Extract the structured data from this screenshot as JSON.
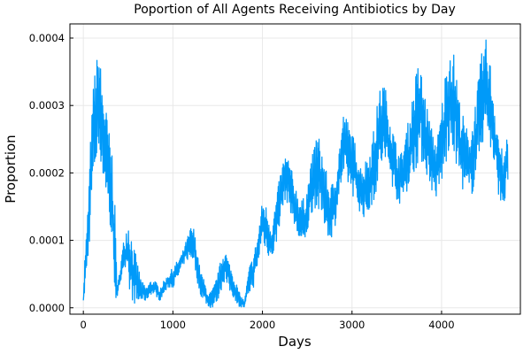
{
  "chart_data": {
    "type": "line",
    "title": "Poportion of All Agents Receiving Antibiotics by Day",
    "xlabel": "Days",
    "ylabel": "Proportion",
    "xlim": [
      -150,
      4880
    ],
    "ylim": [
      -9.5e-06,
      0.000421
    ],
    "x_ticks": [
      0,
      1000,
      2000,
      3000,
      4000
    ],
    "x_tick_labels": [
      "0",
      "1000",
      "2000",
      "3000",
      "4000"
    ],
    "y_ticks": [
      0,
      0.0001,
      0.0002,
      0.0003,
      0.0004
    ],
    "y_tick_labels": [
      "0.0000",
      "0.0001",
      "0.0002",
      "0.0003",
      "0.0004"
    ],
    "grid": true,
    "legend": "none",
    "series_color": "#009af9",
    "series": [
      {
        "envelope_x": [
          0,
          20,
          40,
          60,
          80,
          100,
          120,
          150,
          180,
          200,
          230,
          260,
          290,
          320,
          350,
          370,
          380,
          400,
          450,
          500,
          550,
          600,
          650,
          700,
          750,
          800,
          850,
          900,
          950,
          1000,
          1050,
          1100,
          1150,
          1200,
          1230,
          1270,
          1300,
          1350,
          1400,
          1450,
          1500,
          1550,
          1580,
          1600,
          1650,
          1700,
          1750,
          1800,
          1850,
          1900,
          1950,
          1980,
          2000,
          2050,
          2100,
          2150,
          2200,
          2250,
          2300,
          2350,
          2400,
          2450,
          2500,
          2550,
          2600,
          2650,
          2700,
          2750,
          2800,
          2850,
          2900,
          2950,
          3000,
          3050,
          3100,
          3150,
          3200,
          3250,
          3300,
          3350,
          3400,
          3450,
          3500,
          3550,
          3600,
          3650,
          3700,
          3750,
          3800,
          3850,
          3900,
          3950,
          4000,
          4050,
          4100,
          4150,
          4200,
          4250,
          4300,
          4350,
          4400,
          4450,
          4500,
          4550,
          4600,
          4650,
          4700,
          4740
        ],
        "envelope_low": [
          0.0,
          3e-05,
          5e-05,
          8e-05,
          0.00012,
          0.00016,
          0.00019,
          0.00021,
          0.00023,
          0.00021,
          0.00018,
          0.00016,
          0.00012,
          8e-05,
          3e-05,
          0.0,
          1e-05,
          3e-05,
          6e-05,
          2e-05,
          1e-05,
          0.0,
          1e-05,
          1e-05,
          2e-05,
          2e-05,
          1e-05,
          2e-05,
          3e-05,
          3e-05,
          4e-05,
          6e-05,
          7e-05,
          7e-05,
          7e-05,
          4e-05,
          2e-05,
          1e-05,
          0.0,
          0.0,
          1e-05,
          3e-05,
          4e-05,
          3e-05,
          2e-05,
          1e-05,
          0.0,
          0.0,
          2e-05,
          3e-05,
          6e-05,
          9e-05,
          0.0001,
          8e-05,
          7e-05,
          9e-05,
          0.00013,
          0.00016,
          0.00015,
          0.00012,
          0.0001,
          8e-05,
          0.00011,
          0.00014,
          0.00015,
          0.00013,
          0.00012,
          0.0001,
          0.00011,
          0.00016,
          0.00019,
          0.00018,
          0.00017,
          0.00015,
          0.00014,
          0.00013,
          0.00014,
          0.00016,
          0.00019,
          0.00021,
          0.0002,
          0.00018,
          0.00016,
          0.00015,
          0.00017,
          0.00018,
          0.0002,
          0.00022,
          0.00021,
          0.00019,
          0.00017,
          0.00016,
          0.00018,
          0.00021,
          0.00023,
          0.00022,
          0.00019,
          0.00017,
          0.00016,
          0.00017,
          0.00021,
          0.00024,
          0.00026,
          0.00023,
          0.00019,
          0.00016,
          0.00015,
          0.00018
        ],
        "envelope_high": [
          2e-05,
          9e-05,
          0.00012,
          0.00018,
          0.00025,
          0.0003,
          0.00035,
          0.00037,
          0.00039,
          0.00034,
          0.00032,
          0.00029,
          0.00026,
          0.00024,
          0.00016,
          8e-05,
          3e-05,
          5e-05,
          0.0001,
          0.00014,
          0.0001,
          7e-05,
          4e-05,
          3e-05,
          4e-05,
          4e-05,
          3e-05,
          4e-05,
          5e-05,
          6e-05,
          7e-05,
          8e-05,
          0.0001,
          0.00012,
          0.00012,
          9e-05,
          6e-05,
          4e-05,
          2e-05,
          3e-05,
          5e-05,
          8e-05,
          9e-05,
          8e-05,
          6e-05,
          4e-05,
          2e-05,
          1e-05,
          6e-05,
          8e-05,
          0.00011,
          0.00014,
          0.00016,
          0.00015,
          0.00012,
          0.00016,
          0.0002,
          0.00023,
          0.00022,
          0.00019,
          0.00017,
          0.00016,
          0.00018,
          0.00022,
          0.00026,
          0.00025,
          0.00021,
          0.00018,
          0.00019,
          0.00023,
          0.00029,
          0.00028,
          0.00026,
          0.00024,
          0.00021,
          0.00022,
          0.00024,
          0.00027,
          0.00032,
          0.00034,
          0.00031,
          0.00027,
          0.00024,
          0.00023,
          0.00026,
          0.00029,
          0.00034,
          0.00037,
          0.00033,
          0.00029,
          0.00026,
          0.00025,
          0.0003,
          0.00036,
          0.0004,
          0.00037,
          0.00031,
          0.00028,
          0.00026,
          0.00028,
          0.00033,
          0.00038,
          0.0004,
          0.00036,
          0.0003,
          0.00025,
          0.00022,
          0.00027
        ]
      }
    ]
  }
}
